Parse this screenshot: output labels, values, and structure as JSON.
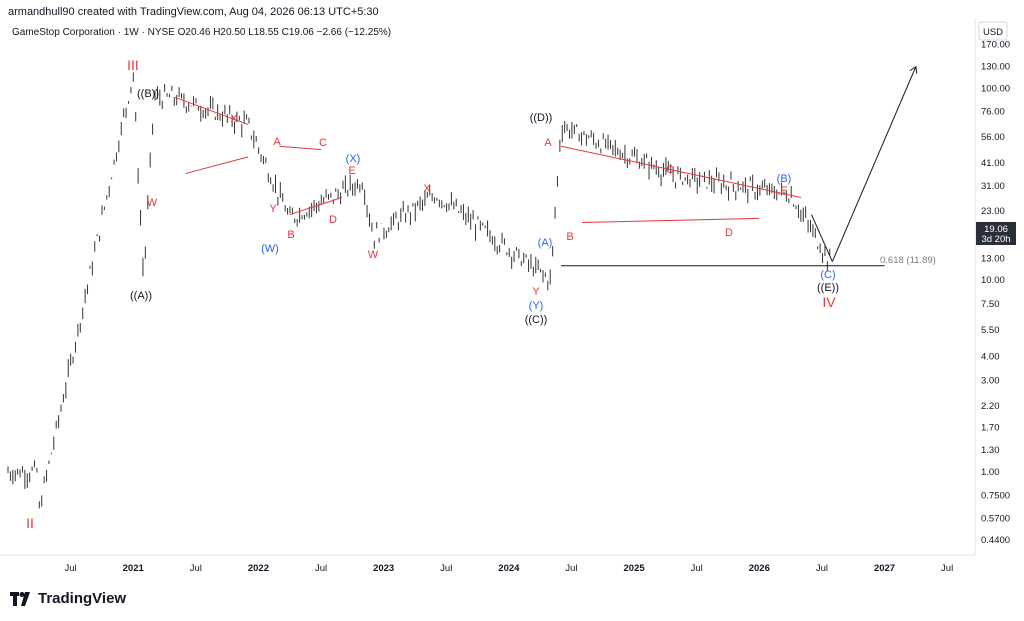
{
  "header": {
    "credit": "armandhull90 created with TradingView.com, Aug 04, 2026 06:13 UTC+5:30",
    "symbol": "GameStop Corporation · 1W · NYSE",
    "ohlc": "O20.46  H20.50  L18.55  C19.06  −2.66 (−12.25%)"
  },
  "currency": "USD",
  "price_badge": {
    "price": "19.06",
    "countdown": "3d 20h"
  },
  "fib_label": "0.618 (11.89)",
  "brand": "TradingView",
  "chart_data": {
    "type": "bar",
    "title": "GameStop Corporation · 1W · NYSE",
    "scale": "log",
    "ylim": [
      0.4,
      175
    ],
    "y_ticks": [
      "170.00",
      "130.00",
      "100.00",
      "76.00",
      "56.00",
      "41.00",
      "31.00",
      "23.00",
      "13.00",
      "10.00",
      "7.50",
      "5.50",
      "4.00",
      "3.00",
      "2.20",
      "1.70",
      "1.30",
      "1.00",
      "0.7500",
      "0.5700",
      "0.4400"
    ],
    "x_ticks": [
      "Jul",
      "2021",
      "Jul",
      "2022",
      "Jul",
      "2023",
      "Jul",
      "2024",
      "Jul",
      "2025",
      "Jul",
      "2026",
      "Jul",
      "2027",
      "Jul"
    ],
    "xlim": [
      "2020-01",
      "2027-09"
    ],
    "last_close": 19.06,
    "key_points": [
      {
        "date": "2020-04",
        "price": 0.64,
        "label": "II"
      },
      {
        "date": "2021-01",
        "price": 120,
        "label": "III"
      },
      {
        "date": "2021-02",
        "price": 10,
        "label": "((A))"
      },
      {
        "date": "2021-03",
        "price": 90,
        "label": "((B))"
      },
      {
        "date": "2021-05",
        "price": 90,
        "label": ""
      },
      {
        "date": "2021-12",
        "price": 65,
        "label": "X"
      },
      {
        "date": "2022-04",
        "price": 21,
        "label": "(W)"
      },
      {
        "date": "2022-11",
        "price": 33,
        "label": "(X)"
      },
      {
        "date": "2022-12",
        "price": 17,
        "label": "W"
      },
      {
        "date": "2023-06",
        "price": 28,
        "label": "X"
      },
      {
        "date": "2024-05",
        "price": 10,
        "label": "((C))"
      },
      {
        "date": "2024-06",
        "price": 64,
        "label": "((D))"
      },
      {
        "date": "2025-05",
        "price": 35,
        "label": "C"
      },
      {
        "date": "2026-04",
        "price": 28,
        "label": "(B)"
      },
      {
        "date": "2026-08",
        "price": 11.89,
        "label": "((E))"
      },
      {
        "date": "2027-04",
        "price": 130,
        "label": ""
      }
    ],
    "fib_level": {
      "ratio": 0.618,
      "price": 11.89
    },
    "wave_labels": {
      "red": [
        "III",
        "II",
        "W",
        "X",
        "A",
        "C",
        "B",
        "D",
        "E",
        "Y",
        "W",
        "X",
        "A",
        "B",
        "C",
        "D",
        "E",
        "Y",
        "IV"
      ],
      "blue": [
        "(W)",
        "(X)",
        "(A)",
        "(Y)",
        "(B)",
        "(C)"
      ],
      "black": [
        "((B))",
        "((A))",
        "((D))",
        "((C))",
        "((E))"
      ]
    }
  }
}
